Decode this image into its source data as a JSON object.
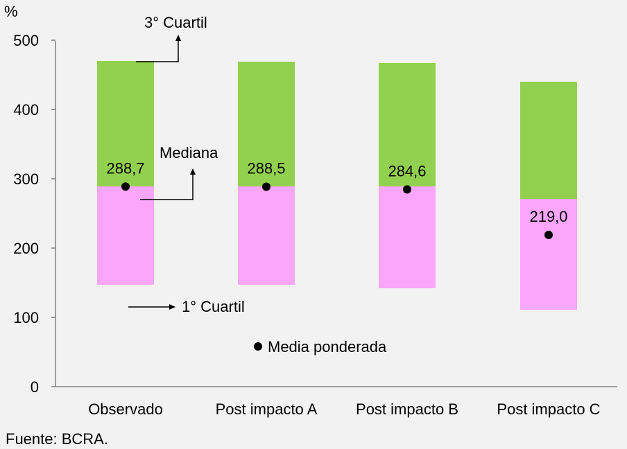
{
  "chart_data": {
    "type": "bar",
    "unit_label": "%",
    "categories": [
      "Observado",
      "Post impacto A",
      "Post impacto B",
      "Post impacto C"
    ],
    "series": [
      {
        "name": "1° Cuartil",
        "values": [
          147,
          147,
          142,
          111
        ]
      },
      {
        "name": "Mediana",
        "values": [
          289,
          289,
          289,
          271
        ]
      },
      {
        "name": "3° Cuartil",
        "values": [
          470,
          469,
          467,
          440
        ]
      },
      {
        "name": "Media ponderada",
        "values": [
          288.7,
          288.5,
          284.6,
          219.0
        ]
      }
    ],
    "data_labels": [
      "288,7",
      "288,5",
      "284,6",
      "219,0"
    ],
    "ylim": [
      0,
      500
    ],
    "yticks": [
      "0",
      "100",
      "200",
      "300",
      "400",
      "500"
    ],
    "annotations": {
      "q3": "3° Cuartil",
      "median": "Mediana",
      "q1": "1° Cuartil",
      "mean": "Media ponderada"
    },
    "colors": {
      "upper_box": "#92d050",
      "lower_box": "#f9a6fb",
      "marker": "#000000",
      "background": "#f2f2f2"
    },
    "source": "Fuente: BCRA."
  }
}
